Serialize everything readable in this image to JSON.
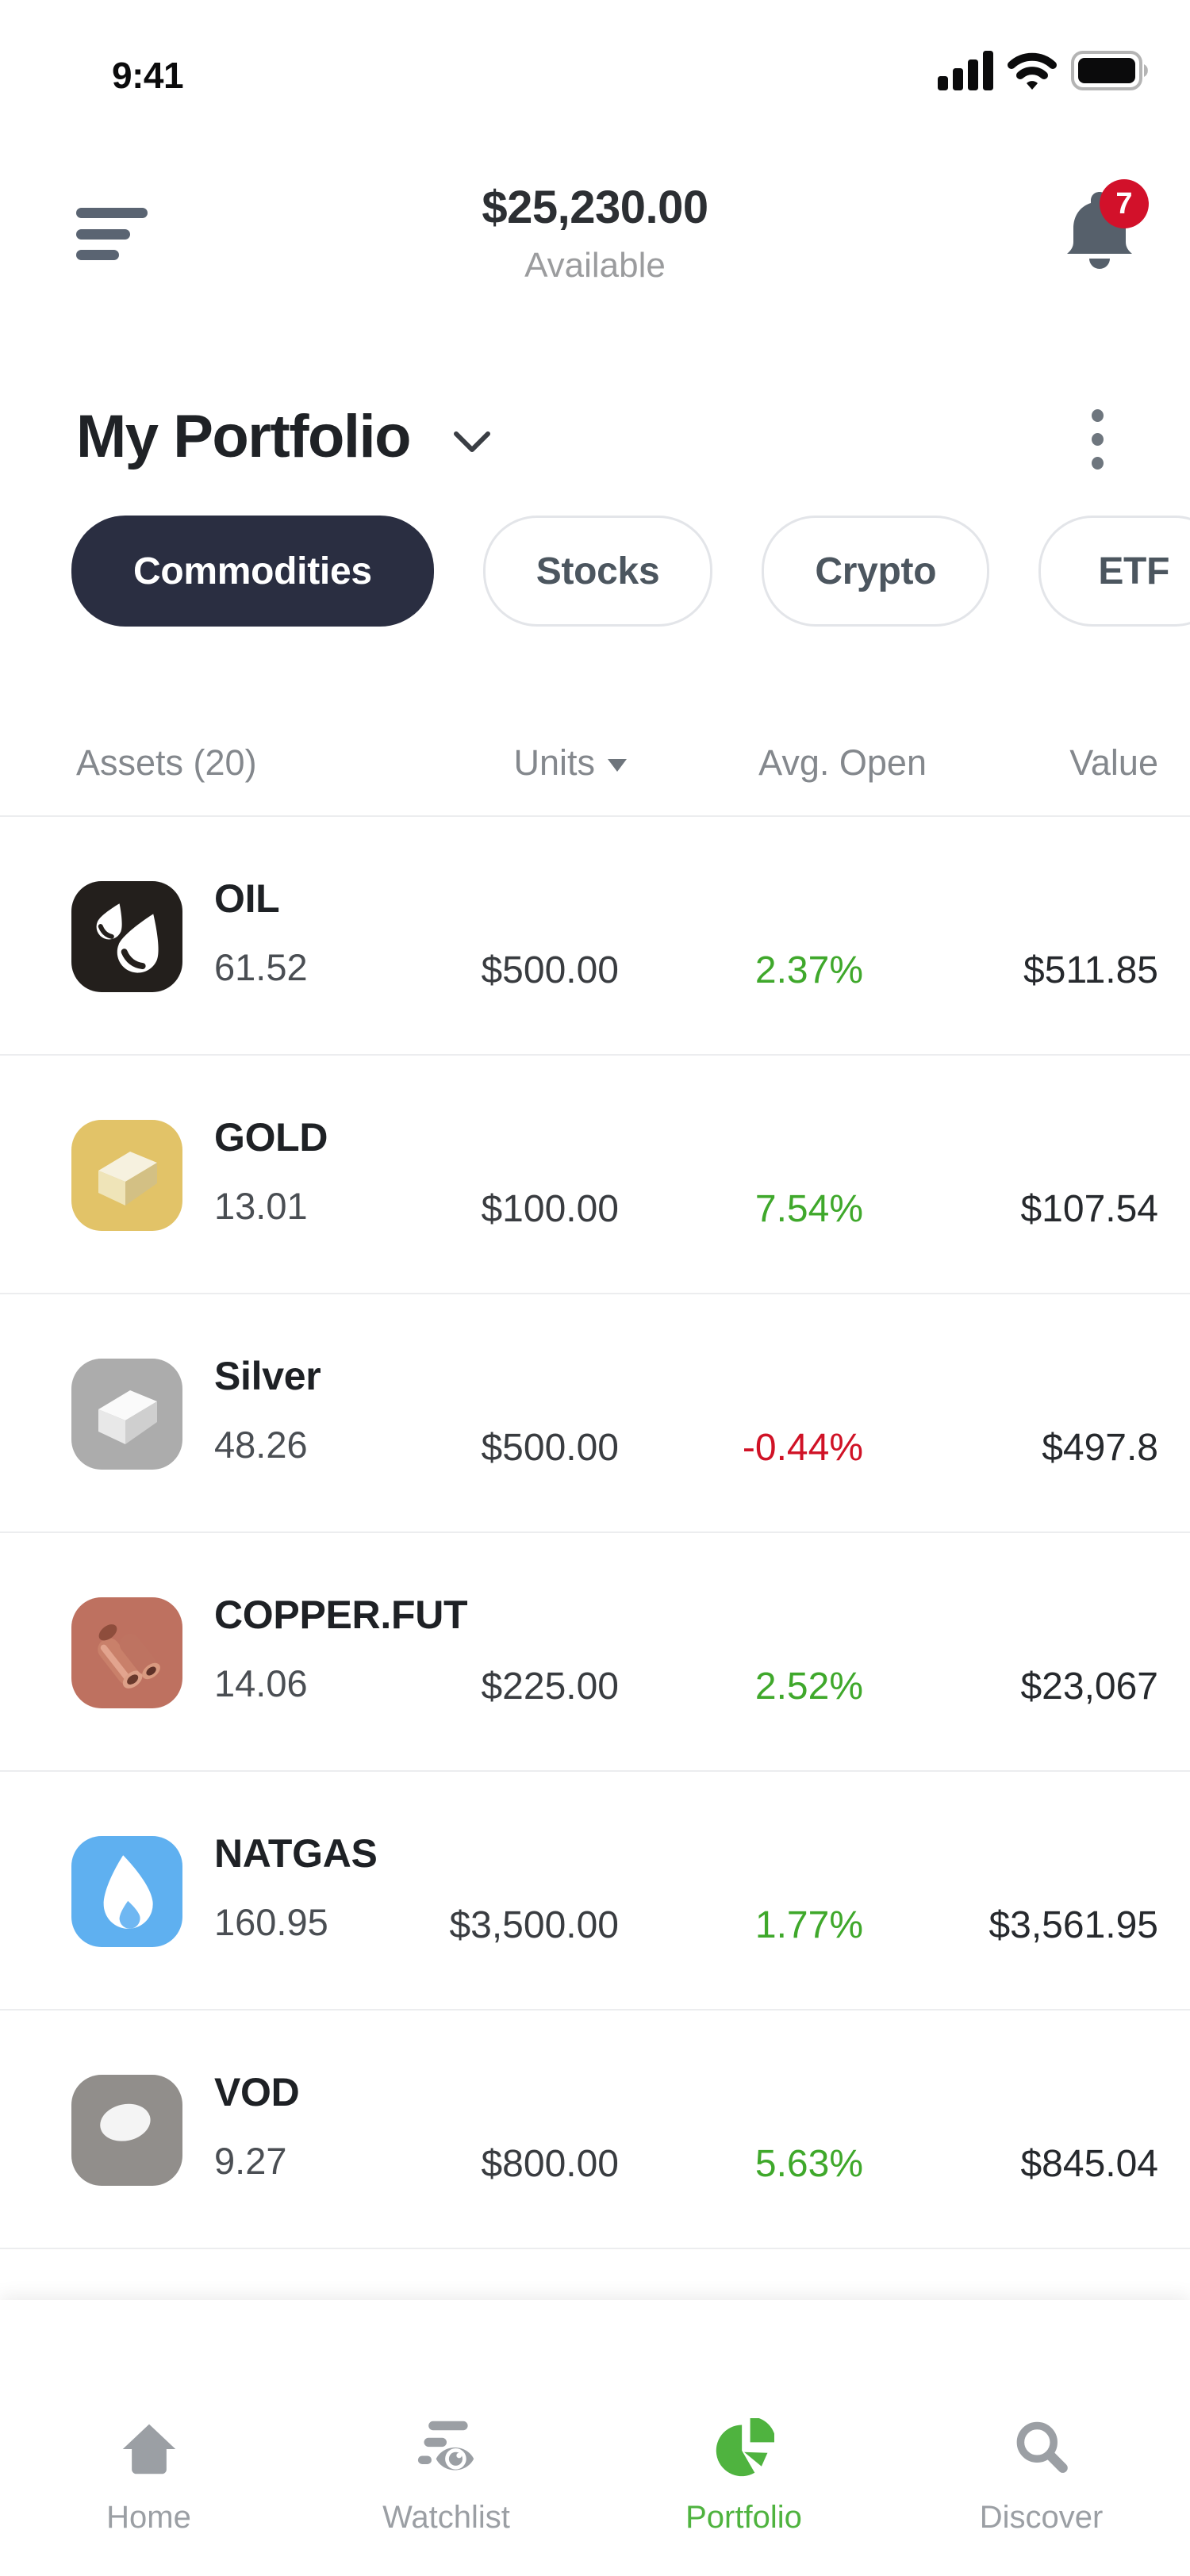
{
  "status_bar": {
    "time": "9:41"
  },
  "header": {
    "balance": "$25,230.00",
    "balance_caption": "Available",
    "notification_count": "7"
  },
  "title_bar": {
    "title": "My Portfolio"
  },
  "filters": [
    {
      "label": "Commodities",
      "active": true
    },
    {
      "label": "Stocks",
      "active": false
    },
    {
      "label": "Crypto",
      "active": false
    },
    {
      "label": "ETF",
      "active": false
    }
  ],
  "table": {
    "headers": {
      "assets": "Assets (20)",
      "units": "Units",
      "avg_open": "Avg. Open",
      "value": "Value"
    },
    "rows": [
      {
        "ticker": "OIL",
        "units": "61.52",
        "amount": "$500.00",
        "change": "2.37%",
        "direction": "up",
        "value": "$511.85",
        "icon": "oil",
        "tile_color": "#231F1C"
      },
      {
        "ticker": "GOLD",
        "units": "13.01",
        "amount": "$100.00",
        "change": "7.54%",
        "direction": "up",
        "value": "$107.54",
        "icon": "gold",
        "tile_color": "#E2C368"
      },
      {
        "ticker": "Silver",
        "units": "48.26",
        "amount": "$500.00",
        "change": "-0.44%",
        "direction": "down",
        "value": "$497.8",
        "icon": "silver",
        "tile_color": "#ACACAC"
      },
      {
        "ticker": "COPPER.FUT",
        "units": "14.06",
        "amount": "$225.00",
        "change": "2.52%",
        "direction": "up",
        "value": "$23,067",
        "icon": "copper",
        "tile_color": "#BE7160"
      },
      {
        "ticker": "NATGAS",
        "units": "160.95",
        "amount": "$3,500.00",
        "change": "1.77%",
        "direction": "up",
        "value": "$3,561.95",
        "icon": "natgas",
        "tile_color": "#5FB0F0",
        "tile_gradient": true
      },
      {
        "ticker": "VOD",
        "units": "9.27",
        "amount": "$800.00",
        "change": "5.63%",
        "direction": "up",
        "value": "$845.04",
        "icon": "vod",
        "tile_color": "#918E8B"
      }
    ]
  },
  "nav": [
    {
      "label": "Home",
      "icon": "home",
      "active": false
    },
    {
      "label": "Watchlist",
      "icon": "watchlist",
      "active": false
    },
    {
      "label": "Portfolio",
      "icon": "portfolio",
      "active": true
    },
    {
      "label": "Discover",
      "icon": "discover",
      "active": false
    }
  ],
  "colors": {
    "positive": "#3FA82B",
    "negative": "#D01226",
    "filter_active_bg": "#2A2E41",
    "filter_active_text": "#FFFFFF",
    "badge_bg": "#D2112A",
    "nav_active": "#4FB33F"
  }
}
